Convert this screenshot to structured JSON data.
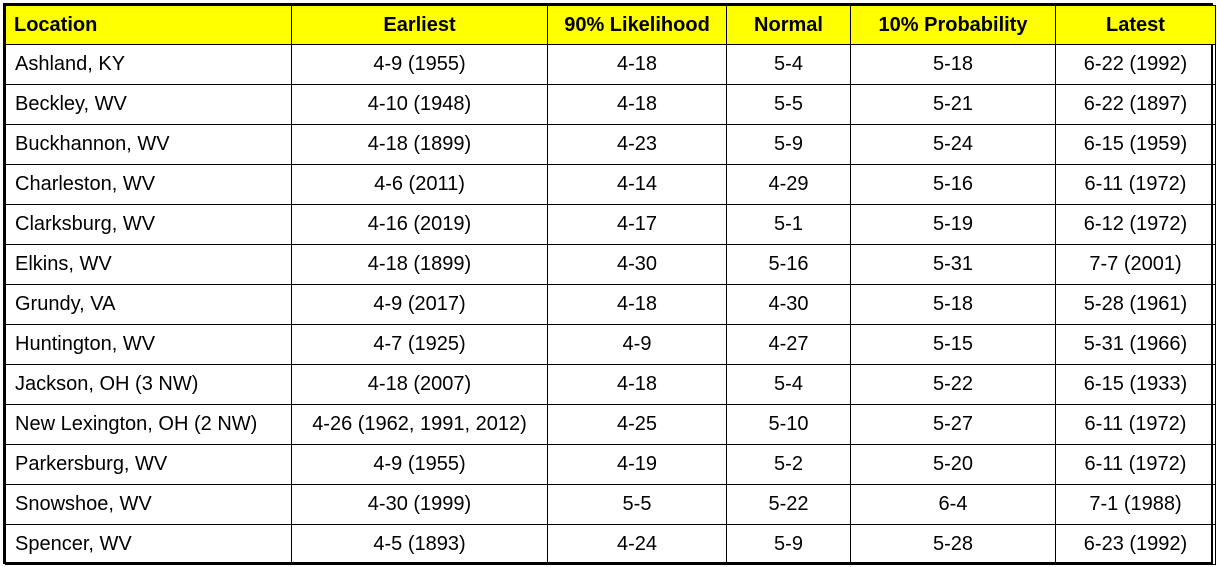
{
  "table": {
    "header_bg": "#ffff00",
    "headers": [
      "Location",
      "Earliest",
      "90% Likelihood",
      "Normal",
      "10% Probability",
      "Latest"
    ],
    "rows": [
      [
        "Ashland, KY",
        "4-9 (1955)",
        "4-18",
        "5-4",
        "5-18",
        "6-22 (1992)"
      ],
      [
        "Beckley, WV",
        "4-10 (1948)",
        "4-18",
        "5-5",
        "5-21",
        "6-22 (1897)"
      ],
      [
        "Buckhannon, WV",
        "4-18 (1899)",
        "4-23",
        "5-9",
        "5-24",
        "6-15 (1959)"
      ],
      [
        "Charleston, WV",
        "4-6 (2011)",
        "4-14",
        "4-29",
        "5-16",
        "6-11 (1972)"
      ],
      [
        "Clarksburg, WV",
        "4-16 (2019)",
        "4-17",
        "5-1",
        "5-19",
        "6-12 (1972)"
      ],
      [
        "Elkins, WV",
        "4-18 (1899)",
        "4-30",
        "5-16",
        "5-31",
        "7-7 (2001)"
      ],
      [
        "Grundy, VA",
        "4-9 (2017)",
        "4-18",
        "4-30",
        "5-18",
        "5-28 (1961)"
      ],
      [
        "Huntington, WV",
        "4-7 (1925)",
        "4-9",
        "4-27",
        "5-15",
        "5-31 (1966)"
      ],
      [
        "Jackson, OH (3 NW)",
        "4-18 (2007)",
        "4-18",
        "5-4",
        "5-22",
        "6-15 (1933)"
      ],
      [
        "New Lexington, OH (2 NW)",
        "4-26 (1962, 1991, 2012)",
        "4-25",
        "5-10",
        "5-27",
        "6-11 (1972)"
      ],
      [
        "Parkersburg, WV",
        "4-9 (1955)",
        "4-19",
        "5-2",
        "5-20",
        "6-11 (1972)"
      ],
      [
        "Snowshoe, WV",
        "4-30 (1999)",
        "5-5",
        "5-22",
        "6-4",
        "7-1 (1988)"
      ],
      [
        "Spencer, WV",
        "4-5 (1893)",
        "4-24",
        "5-9",
        "5-28",
        "6-23 (1992)"
      ]
    ]
  }
}
